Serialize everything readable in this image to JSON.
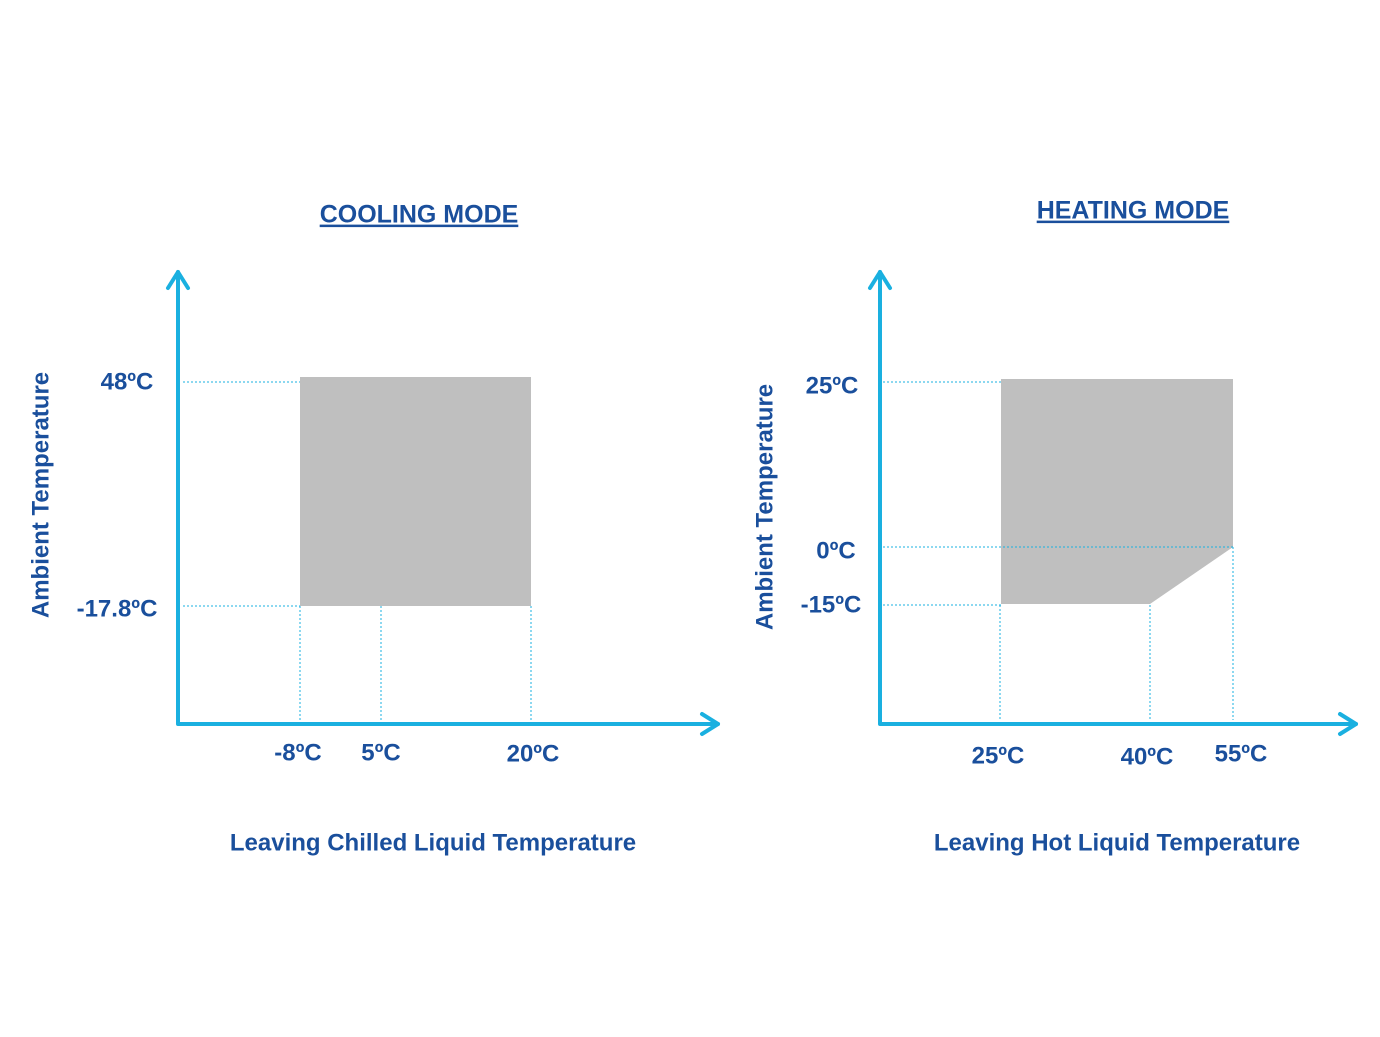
{
  "diagrams": [
    {
      "title": "COOLING MODE",
      "y_axis_label": "Ambient Temperature",
      "x_axis_label": "Leaving Chilled Liquid Temperature",
      "y_labels": [
        "48ºC",
        "-17.8ºC"
      ],
      "x_labels": [
        "-8ºC",
        "5ºC",
        "20ºC"
      ]
    },
    {
      "title": "HEATING MODE",
      "y_axis_label": "Ambient Temperature",
      "x_axis_label": "Leaving Hot Liquid Temperature",
      "y_labels": [
        "25ºC",
        "0ºC",
        "-15ºC"
      ],
      "x_labels": [
        "25ºC",
        "40ºC",
        "55ºC"
      ]
    }
  ]
}
